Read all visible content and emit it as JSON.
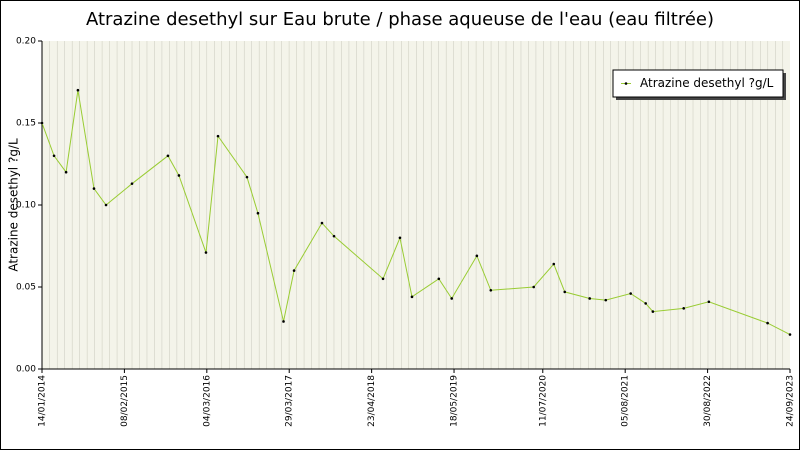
{
  "chart_data": {
    "type": "line",
    "title": "Atrazine desethyl sur Eau brute / phase aqueuse de l'eau (eau filtrée)",
    "y_label": "Atrazine desethyl ?g/L",
    "x": [
      "14/01/2014",
      "12/03/2014",
      "08/05/2014",
      "03/07/2014",
      "17/09/2014",
      "13/11/2014",
      "16/03/2015",
      "02/09/2015",
      "24/10/2015",
      "29/02/2016",
      "26/04/2016",
      "10/09/2016",
      "01/11/2016",
      "02/03/2017",
      "21/04/2017",
      "31/08/2017",
      "27/10/2017",
      "16/06/2018",
      "04/09/2018",
      "31/10/2018",
      "07/03/2019",
      "07/05/2019",
      "03/09/2019",
      "08/11/2019",
      "29/05/2020",
      "01/09/2020",
      "23/10/2020",
      "18/02/2021",
      "05/05/2021",
      "31/08/2021",
      "10/11/2021",
      "14/12/2021",
      "09/05/2022",
      "05/09/2022",
      "10/06/2023",
      "24/09/2023"
    ],
    "series": [
      {
        "name": "Atrazine desethyl ?g/L",
        "color": "#99cc33",
        "marker_color": "#000000",
        "values": [
          0.15,
          0.13,
          0.12,
          0.17,
          0.11,
          0.1,
          0.113,
          0.13,
          0.118,
          0.071,
          0.142,
          0.117,
          0.095,
          0.029,
          0.06,
          0.089,
          0.081,
          0.055,
          0.08,
          0.044,
          0.055,
          0.043,
          0.069,
          0.048,
          0.05,
          0.064,
          0.047,
          0.043,
          0.042,
          0.046,
          0.04,
          0.035,
          0.037,
          0.041,
          0.028,
          0.021
        ]
      }
    ],
    "xlim": [
      "14/01/2014",
      "24/09/2023"
    ],
    "xticks": [
      "14/01/2014",
      "08/02/2015",
      "04/03/2016",
      "29/03/2017",
      "23/04/2018",
      "18/05/2019",
      "11/07/2020",
      "05/08/2021",
      "30/08/2022",
      "24/09/2023"
    ],
    "ylim": [
      0,
      0.2
    ],
    "yticks": [
      {
        "value": 0,
        "label": "0.00"
      },
      {
        "value": 0.05,
        "label": "0.05"
      },
      {
        "value": 0.1,
        "label": "0.10"
      },
      {
        "value": 0.15,
        "label": "0.15"
      },
      {
        "value": 0.2,
        "label": "0.20"
      }
    ],
    "legend": "top-right"
  }
}
